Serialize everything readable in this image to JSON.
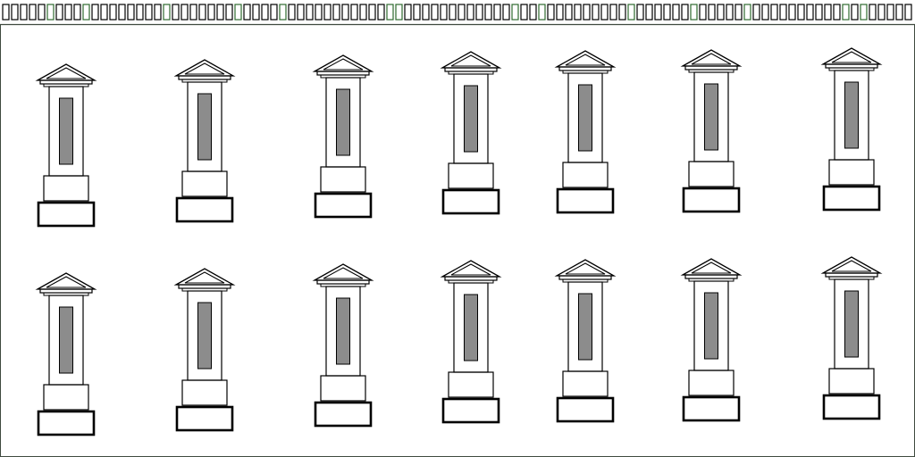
{
  "colors": {
    "background": "#ffffff",
    "stroke": "#000000",
    "panel_fill": "#8c8c8c",
    "frame": "#3f4a3f",
    "accent_green": "#2f6b2f"
  },
  "layout_notes": "",
  "drawing": {
    "border_pattern": "rectangle-row",
    "shape_kind": "pillar-with-pyramid-cap",
    "rows": 2,
    "columns": 7
  }
}
